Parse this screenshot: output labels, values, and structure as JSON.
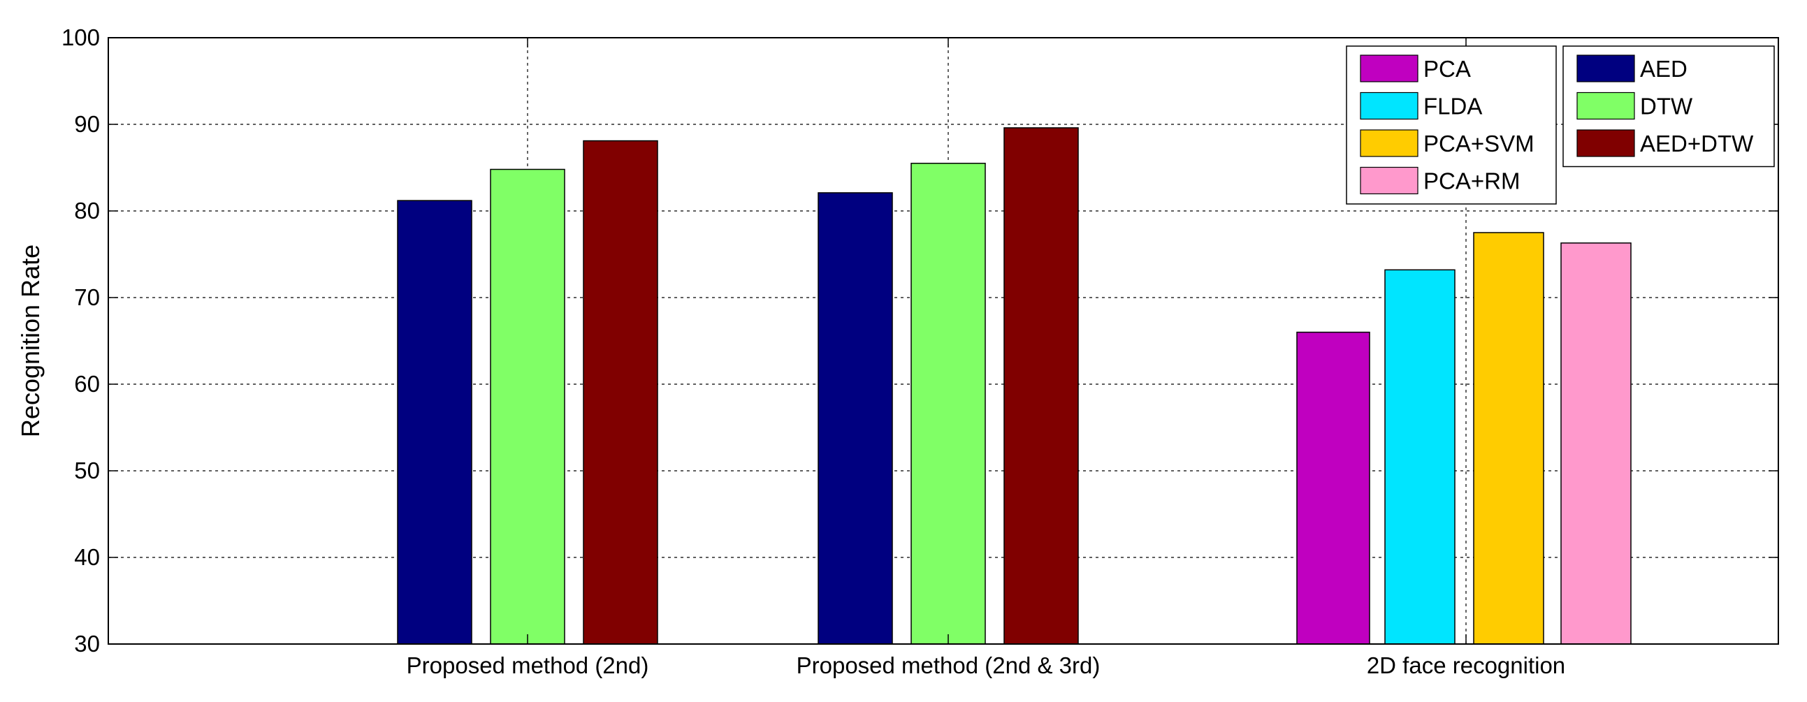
{
  "chart_data": {
    "type": "bar",
    "title": "",
    "xlabel": "",
    "ylabel": "Recognition Rate",
    "ylim": [
      30,
      100
    ],
    "yticks": [
      30,
      40,
      50,
      60,
      70,
      80,
      90,
      100
    ],
    "grid": true,
    "legend_position": "top-right",
    "categories": [
      "Proposed method (2nd)",
      "Proposed method (2nd & 3rd)",
      "2D face recognition"
    ],
    "series": [
      {
        "name": "PCA",
        "color": "#C000C0",
        "values": [
          null,
          null,
          66.0
        ]
      },
      {
        "name": "FLDA",
        "color": "#00E5FF",
        "values": [
          null,
          null,
          73.2
        ]
      },
      {
        "name": "PCA+SVM",
        "color": "#FFCC00",
        "values": [
          null,
          null,
          77.5
        ]
      },
      {
        "name": "PCA+RM",
        "color": "#FF99CC",
        "values": [
          null,
          null,
          76.3
        ]
      },
      {
        "name": "AED",
        "color": "#000080",
        "values": [
          81.2,
          82.1,
          null
        ]
      },
      {
        "name": "DTW",
        "color": "#80FF66",
        "values": [
          84.8,
          85.5,
          null
        ]
      },
      {
        "name": "AED+DTW",
        "color": "#800000",
        "values": [
          88.1,
          89.6,
          null
        ]
      }
    ],
    "legend_columns": [
      [
        "PCA",
        "FLDA",
        "PCA+SVM",
        "PCA+RM"
      ],
      [
        "AED",
        "DTW",
        "AED+DTW"
      ]
    ]
  }
}
